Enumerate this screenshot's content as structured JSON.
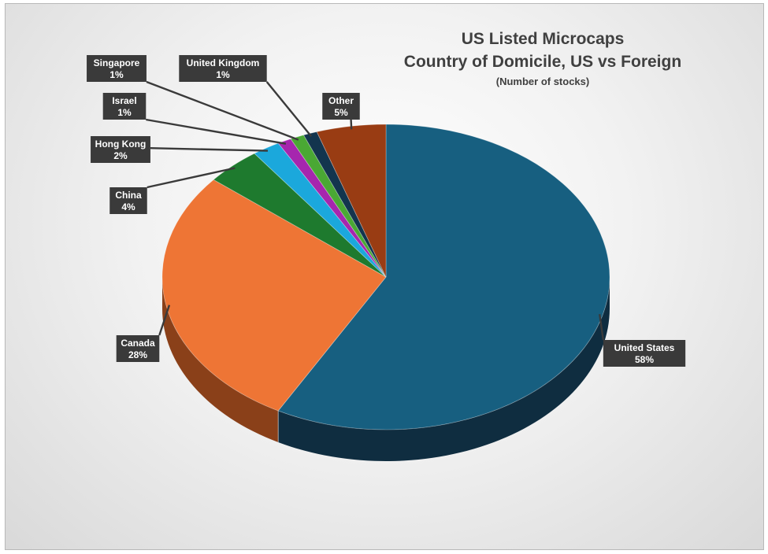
{
  "chart_data": {
    "type": "pie",
    "style": "3d",
    "title": "US Listed Microcaps",
    "subtitle_line": "Country of Domicile, US vs Foreign",
    "note": "(Number of stocks)",
    "legend": "none",
    "categories": [
      "United States",
      "Canada",
      "China",
      "Hong Kong",
      "Israel",
      "Singapore",
      "United Kingdom",
      "Other"
    ],
    "values": [
      58,
      28,
      4,
      2,
      1,
      1,
      1,
      5
    ],
    "data_labels": [
      "58%",
      "28%",
      "4%",
      "2%",
      "1%",
      "1%",
      "1%",
      "5%"
    ],
    "colors": [
      "#175f80",
      "#ee7535",
      "#1e7a2e",
      "#1ba8dc",
      "#a626ae",
      "#4aa834",
      "#13354e",
      "#993c13"
    ],
    "side_colors": [
      "#0f2d40",
      "#8a4019",
      "#0d3f18",
      "#0e5a78",
      "#5c1261",
      "#24601a",
      "#0a1b27",
      "#4e1e09"
    ]
  }
}
